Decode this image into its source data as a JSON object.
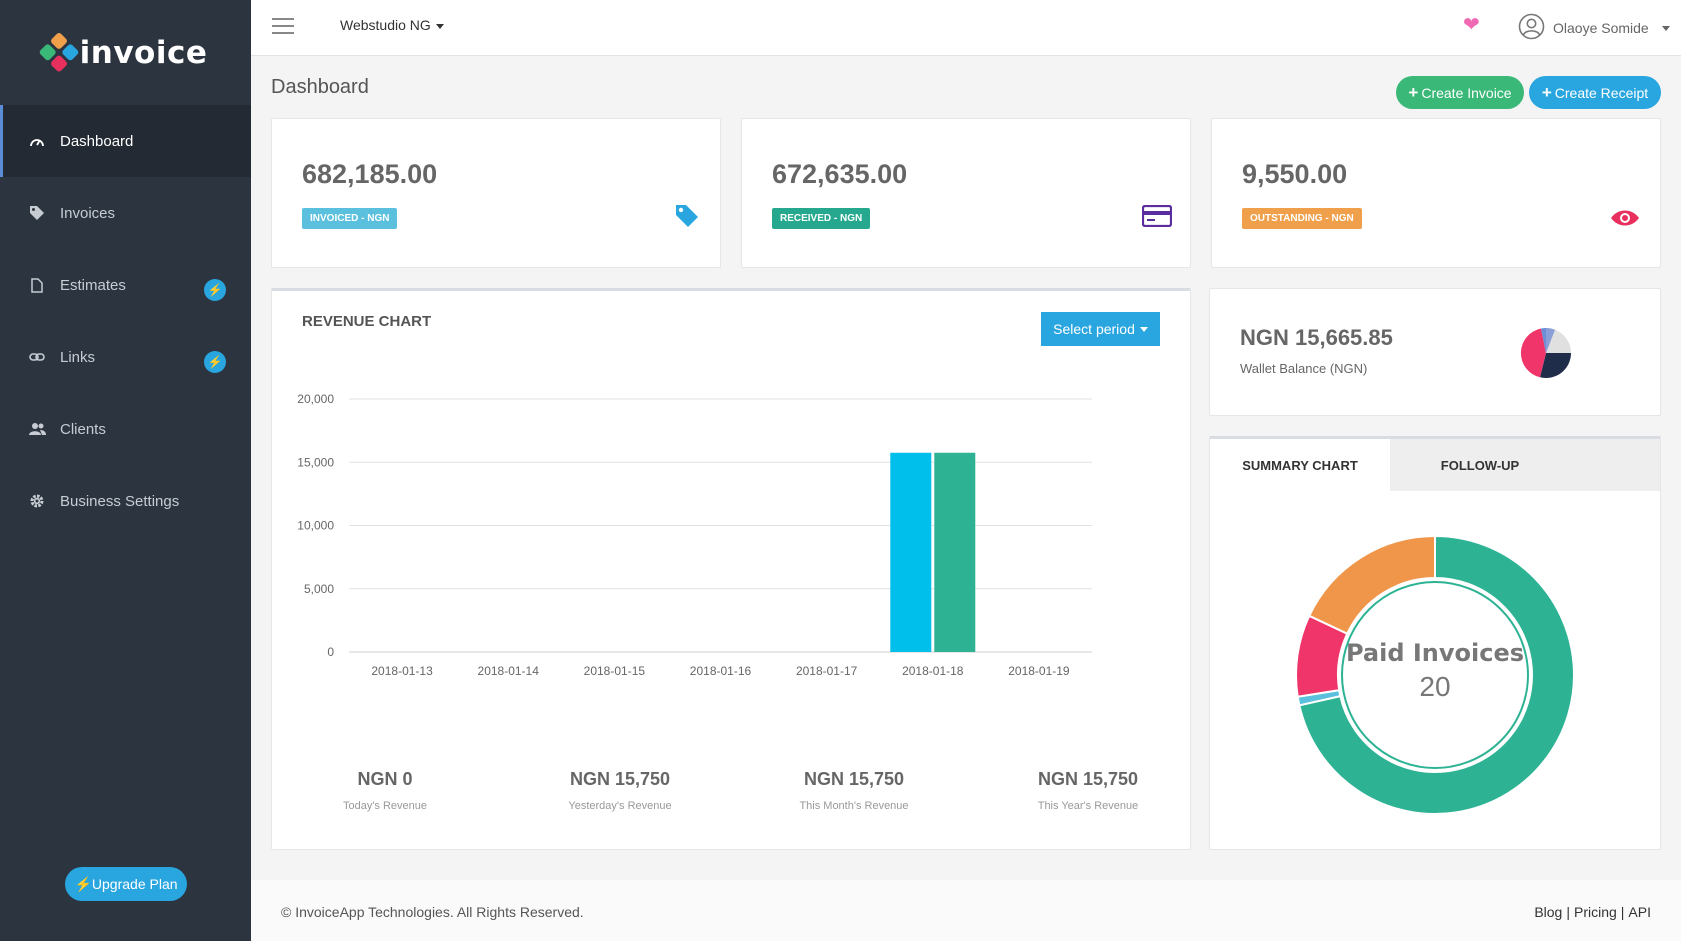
{
  "brand": {
    "name": "invoice"
  },
  "sidebar": {
    "items": [
      {
        "label": "Dashboard",
        "icon": "gauge-icon",
        "active": true
      },
      {
        "label": "Invoices",
        "icon": "tag-icon"
      },
      {
        "label": "Estimates",
        "icon": "file-icon",
        "badge": "bolt-icon"
      },
      {
        "label": "Links",
        "icon": "link-icon",
        "badge": "bolt-icon"
      },
      {
        "label": "Clients",
        "icon": "users-icon"
      },
      {
        "label": "Business Settings",
        "icon": "gear-icon"
      }
    ],
    "upgrade_label": "Upgrade Plan"
  },
  "topbar": {
    "organization": "Webstudio NG",
    "user_name": "Olaoye Somide"
  },
  "page": {
    "title": "Dashboard",
    "create_invoice_label": "Create Invoice",
    "create_receipt_label": "Create Receipt"
  },
  "stats": [
    {
      "value": "682,185.00",
      "label": "INVOICED - NGN",
      "color": "#5bc0de",
      "icon": "tag-icon",
      "icon_color": "#29a6e0"
    },
    {
      "value": "672,635.00",
      "label": "RECEIVED - NGN",
      "color": "#26a88e",
      "icon": "credit-card-icon",
      "icon_color": "#5b2c9e"
    },
    {
      "value": "9,550.00",
      "label": "OUTSTANDING - NGN",
      "color": "#f0a04b",
      "icon": "eye-icon",
      "icon_color": "#e8305e"
    }
  ],
  "revenue": {
    "title": "REVENUE CHART",
    "period_label": "Select period",
    "summaries": [
      {
        "value": "NGN 0",
        "label": "Today's Revenue"
      },
      {
        "value": "NGN 15,750",
        "label": "Yesterday's Revenue"
      },
      {
        "value": "NGN 15,750",
        "label": "This Month's Revenue"
      },
      {
        "value": "NGN 15,750",
        "label": "This Year's Revenue"
      }
    ]
  },
  "chart_data": {
    "type": "bar",
    "categories": [
      "2018-01-13",
      "2018-01-14",
      "2018-01-15",
      "2018-01-16",
      "2018-01-17",
      "2018-01-18",
      "2018-01-19"
    ],
    "series": [
      {
        "values": [
          0,
          0,
          0,
          0,
          0,
          15750,
          0
        ],
        "color": "#00bfeb"
      },
      {
        "values": [
          0,
          0,
          0,
          0,
          0,
          15750,
          0
        ],
        "color": "#2db394"
      }
    ],
    "ylim": [
      0,
      20000
    ],
    "yticks": [
      "0",
      "5,000",
      "10,000",
      "15,000",
      "20,000"
    ],
    "grid": true
  },
  "wallet": {
    "value": "NGN 15,665.85",
    "label": "Wallet Balance (NGN)"
  },
  "summary": {
    "tabs": [
      "SUMMARY CHART",
      "FOLLOW-UP"
    ],
    "center_title": "Paid Invoices",
    "center_count": "20",
    "slices": [
      {
        "value": 0.715,
        "color": "#2db394"
      },
      {
        "value": 0.01,
        "color": "#5bc0de"
      },
      {
        "value": 0.095,
        "color": "#f0356a"
      },
      {
        "value": 0.18,
        "color": "#f0964b"
      }
    ]
  },
  "footer": {
    "copyright": "© InvoiceApp Technologies. All Rights Reserved.",
    "links": [
      "Blog",
      "Pricing",
      "API"
    ]
  }
}
